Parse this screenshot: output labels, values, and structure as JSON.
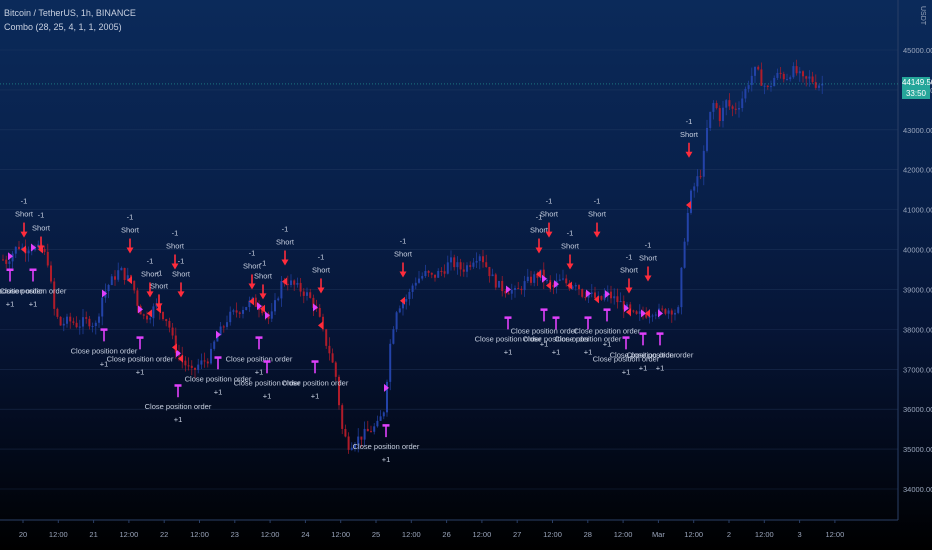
{
  "header": {
    "symbol": "Bitcoin / TetherUS, 1h, BINANCE",
    "indicator": "Combo (28, 25, 4, 1, 1, 2005)"
  },
  "price_axis": {
    "unit": "USDT",
    "ticks": [
      "45000.00",
      "44000.00",
      "43000.00",
      "42000.00",
      "41000.00",
      "40000.00",
      "39000.00",
      "38000.00",
      "37000.00",
      "36000.00",
      "35000.00",
      "34000.00"
    ],
    "last_price": "44149.50",
    "countdown": "33:50"
  },
  "time_axis": {
    "ticks": [
      "20",
      "12:00",
      "21",
      "12:00",
      "22",
      "12:00",
      "23",
      "12:00",
      "24",
      "12:00",
      "25",
      "12:00",
      "26",
      "12:00",
      "27",
      "12:00",
      "28",
      "12:00",
      "Mar",
      "12:00",
      "2",
      "12:00",
      "3",
      "12:00"
    ]
  },
  "chart_data": {
    "type": "candlestick",
    "ylim": [
      33700,
      46200
    ],
    "bullish_color": "#2343a8",
    "bearish_color": "#b01c2a",
    "signal_color": "#e040fb",
    "short_arrow_color": "#ff2c3c",
    "close_path": [
      [
        0,
        39800
      ],
      [
        6,
        39700
      ],
      [
        12,
        39900
      ],
      [
        18,
        40100
      ],
      [
        24,
        40000
      ],
      [
        30,
        40100
      ],
      [
        36,
        40000
      ],
      [
        42,
        40000
      ],
      [
        48,
        39700
      ],
      [
        54,
        38500
      ],
      [
        60,
        38100
      ],
      [
        66,
        38200
      ],
      [
        72,
        38200
      ],
      [
        78,
        38100
      ],
      [
        84,
        38200
      ],
      [
        90,
        38200
      ],
      [
        96,
        38100
      ],
      [
        102,
        38800
      ],
      [
        108,
        39100
      ],
      [
        114,
        39300
      ],
      [
        120,
        39500
      ],
      [
        126,
        39300
      ],
      [
        132,
        39200
      ],
      [
        138,
        38600
      ],
      [
        144,
        38300
      ],
      [
        150,
        38400
      ],
      [
        156,
        38600
      ],
      [
        162,
        38400
      ],
      [
        168,
        38200
      ],
      [
        174,
        37600
      ],
      [
        180,
        37300
      ],
      [
        186,
        37100
      ],
      [
        192,
        36900
      ],
      [
        198,
        37100
      ],
      [
        204,
        37200
      ],
      [
        210,
        37300
      ],
      [
        216,
        37800
      ],
      [
        222,
        38000
      ],
      [
        228,
        38300
      ],
      [
        234,
        38400
      ],
      [
        240,
        38500
      ],
      [
        246,
        38600
      ],
      [
        252,
        38700
      ],
      [
        258,
        38600
      ],
      [
        264,
        38500
      ],
      [
        270,
        38200
      ],
      [
        276,
        38700
      ],
      [
        282,
        39200
      ],
      [
        288,
        39200
      ],
      [
        294,
        39100
      ],
      [
        300,
        39000
      ],
      [
        306,
        38900
      ],
      [
        312,
        38700
      ],
      [
        318,
        38400
      ],
      [
        324,
        37800
      ],
      [
        330,
        37400
      ],
      [
        336,
        36800
      ],
      [
        342,
        35500
      ],
      [
        348,
        35100
      ],
      [
        354,
        35200
      ],
      [
        360,
        35300
      ],
      [
        366,
        35400
      ],
      [
        372,
        35500
      ],
      [
        378,
        35600
      ],
      [
        384,
        36000
      ],
      [
        390,
        37600
      ],
      [
        396,
        38500
      ],
      [
        402,
        38700
      ],
      [
        408,
        38800
      ],
      [
        414,
        39200
      ],
      [
        420,
        39300
      ],
      [
        426,
        39400
      ],
      [
        432,
        39300
      ],
      [
        438,
        39400
      ],
      [
        444,
        39500
      ],
      [
        450,
        39700
      ],
      [
        456,
        39600
      ],
      [
        462,
        39500
      ],
      [
        468,
        39600
      ],
      [
        474,
        39800
      ],
      [
        480,
        39900
      ],
      [
        486,
        39600
      ],
      [
        492,
        39300
      ],
      [
        498,
        39100
      ],
      [
        504,
        39000
      ],
      [
        510,
        39000
      ],
      [
        516,
        38900
      ],
      [
        522,
        39100
      ],
      [
        528,
        39200
      ],
      [
        534,
        39300
      ],
      [
        540,
        39400
      ],
      [
        546,
        39200
      ],
      [
        552,
        39000
      ],
      [
        558,
        39200
      ],
      [
        564,
        39200
      ],
      [
        570,
        39100
      ],
      [
        576,
        39200
      ],
      [
        582,
        38900
      ],
      [
        588,
        38900
      ],
      [
        594,
        38800
      ],
      [
        600,
        38700
      ],
      [
        606,
        38900
      ],
      [
        612,
        38800
      ],
      [
        618,
        38700
      ],
      [
        624,
        38600
      ],
      [
        630,
        38400
      ],
      [
        636,
        38300
      ],
      [
        642,
        38400
      ],
      [
        648,
        38400
      ],
      [
        654,
        38500
      ],
      [
        660,
        38400
      ],
      [
        666,
        38500
      ],
      [
        672,
        38500
      ],
      [
        678,
        38400
      ],
      [
        684,
        40200
      ],
      [
        690,
        41300
      ],
      [
        696,
        41700
      ],
      [
        702,
        42000
      ],
      [
        708,
        43200
      ],
      [
        714,
        43700
      ],
      [
        720,
        43300
      ],
      [
        726,
        43700
      ],
      [
        732,
        43500
      ],
      [
        738,
        43600
      ],
      [
        744,
        43900
      ],
      [
        750,
        44300
      ],
      [
        756,
        44500
      ],
      [
        762,
        44200
      ],
      [
        768,
        44000
      ],
      [
        774,
        44300
      ],
      [
        780,
        44400
      ],
      [
        786,
        44300
      ],
      [
        792,
        44500
      ],
      [
        798,
        44400
      ],
      [
        804,
        44200
      ],
      [
        810,
        44300
      ],
      [
        816,
        44150
      ]
    ],
    "candle_start_x": 3,
    "candle_end_x": 825,
    "candle_step": 3.2,
    "signals": {
      "short": [
        {
          "x": 24,
          "y": 40300,
          "size": "-1",
          "label": "Short"
        },
        {
          "x": 41,
          "y": 39950,
          "size": "-1",
          "label": "Short"
        },
        {
          "x": 130,
          "y": 39900,
          "size": "-1",
          "label": "Short"
        },
        {
          "x": 150,
          "y": 38800,
          "size": "-1",
          "label": "Short"
        },
        {
          "x": 159,
          "y": 38500,
          "size": "-1",
          "label": "Short"
        },
        {
          "x": 175,
          "y": 39500,
          "size": "-1",
          "label": "Short"
        },
        {
          "x": 181,
          "y": 38800,
          "size": "-1",
          "label": "Short"
        },
        {
          "x": 252,
          "y": 39000,
          "size": "-1",
          "label": "Short"
        },
        {
          "x": 263,
          "y": 38750,
          "size": "-1",
          "label": "Short"
        },
        {
          "x": 285,
          "y": 39600,
          "size": "-1",
          "label": "Short"
        },
        {
          "x": 321,
          "y": 38900,
          "size": "-1",
          "label": "Short"
        },
        {
          "x": 403,
          "y": 39300,
          "size": "-1",
          "label": "Short"
        },
        {
          "x": 539,
          "y": 39900,
          "size": "-1",
          "label": "Short"
        },
        {
          "x": 549,
          "y": 40300,
          "size": "-1",
          "label": "Short"
        },
        {
          "x": 570,
          "y": 39500,
          "size": "-1",
          "label": "Short"
        },
        {
          "x": 597,
          "y": 40300,
          "size": "-1",
          "label": "Short"
        },
        {
          "x": 629,
          "y": 38900,
          "size": "-1",
          "label": "Short"
        },
        {
          "x": 648,
          "y": 39200,
          "size": "-1",
          "label": "Short"
        },
        {
          "x": 689,
          "y": 42300,
          "size": "-1",
          "label": "Short"
        }
      ],
      "close": [
        {
          "x": 10,
          "y": 39500,
          "size": "+1",
          "label": "Close position order"
        },
        {
          "x": 33,
          "y": 39500,
          "size": "+1",
          "label": "Close position order"
        },
        {
          "x": 104,
          "y": 38000,
          "size": "+1",
          "label": "Close position order"
        },
        {
          "x": 140,
          "y": 37800,
          "size": "+1",
          "label": "Close position order"
        },
        {
          "x": 178,
          "y": 36600,
          "size": "+1",
          "label": "Close position order"
        },
        {
          "x": 218,
          "y": 37300,
          "size": "+1",
          "label": "Close position order"
        },
        {
          "x": 259,
          "y": 37800,
          "size": "+1",
          "label": "Close position order"
        },
        {
          "x": 267,
          "y": 37200,
          "size": "+1",
          "label": "Close position order"
        },
        {
          "x": 315,
          "y": 37200,
          "size": "+1",
          "label": "Close position order"
        },
        {
          "x": 386,
          "y": 35600,
          "size": "+1",
          "label": "Close position order"
        },
        {
          "x": 508,
          "y": 38300,
          "size": "+1",
          "label": "Close position order"
        },
        {
          "x": 544,
          "y": 38500,
          "size": "+1",
          "label": "Close position order"
        },
        {
          "x": 556,
          "y": 38300,
          "size": "+1",
          "label": "Close position order"
        },
        {
          "x": 588,
          "y": 38300,
          "size": "+1",
          "label": "Close position order"
        },
        {
          "x": 607,
          "y": 38500,
          "size": "+1",
          "label": "Close position order"
        },
        {
          "x": 626,
          "y": 37800,
          "size": "+1",
          "label": "Close position order"
        },
        {
          "x": 643,
          "y": 37900,
          "size": "+1",
          "label": "Close position order"
        },
        {
          "x": 660,
          "y": 37900,
          "size": "+1",
          "label": "Close position order"
        }
      ]
    },
    "long_markers": [
      10,
      33,
      104,
      140,
      178,
      218,
      259,
      267,
      315,
      386,
      508,
      544,
      556,
      588,
      607,
      626,
      643,
      660
    ],
    "short_markers": [
      24,
      41,
      130,
      150,
      159,
      175,
      181,
      252,
      263,
      285,
      321,
      403,
      539,
      549,
      570,
      597,
      629,
      648,
      689
    ]
  }
}
